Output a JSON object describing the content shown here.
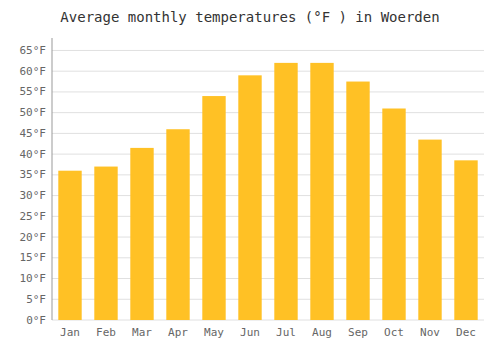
{
  "chart_data": {
    "type": "bar",
    "title": "Average monthly temperatures (°F ) in Woerden",
    "categories": [
      "Jan",
      "Feb",
      "Mar",
      "Apr",
      "May",
      "Jun",
      "Jul",
      "Aug",
      "Sep",
      "Oct",
      "Nov",
      "Dec"
    ],
    "values": [
      36,
      37,
      41.5,
      46,
      54,
      59,
      62,
      62,
      57.5,
      51,
      43.5,
      38.5
    ],
    "color": "#FFC125",
    "ylim": [
      0,
      68
    ],
    "yticks": [
      {
        "value": 0,
        "label": "0°F"
      },
      {
        "value": 5,
        "label": "5°F"
      },
      {
        "value": 10,
        "label": "10°F"
      },
      {
        "value": 15,
        "label": "15°F"
      },
      {
        "value": 20,
        "label": "20°F"
      },
      {
        "value": 25,
        "label": "25°F"
      },
      {
        "value": 30,
        "label": "30°F"
      },
      {
        "value": 35,
        "label": "35°F"
      },
      {
        "value": 40,
        "label": "40°F"
      },
      {
        "value": 45,
        "label": "45°F"
      },
      {
        "value": 50,
        "label": "50°F"
      },
      {
        "value": 55,
        "label": "55°F"
      },
      {
        "value": 60,
        "label": "60°F"
      },
      {
        "value": 65,
        "label": "65°F"
      }
    ],
    "grid": true
  }
}
